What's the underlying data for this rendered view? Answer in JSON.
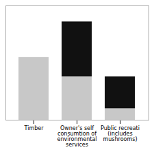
{
  "chart_data": {
    "type": "bar",
    "stacked": true,
    "categories": [
      "Timber",
      "Owner's self\nconsumtion of\nenvironmental\nservices",
      "Public recreati\n(includes\nmushrooms)"
    ],
    "series": [
      {
        "color": "#c8c8c8",
        "values": [
          55,
          38,
          10
        ]
      },
      {
        "color": "#111111",
        "values": [
          0,
          48,
          28
        ]
      }
    ],
    "ylim": [
      0,
      100
    ],
    "yticks": [],
    "grid": false,
    "tick_labels": "x"
  }
}
